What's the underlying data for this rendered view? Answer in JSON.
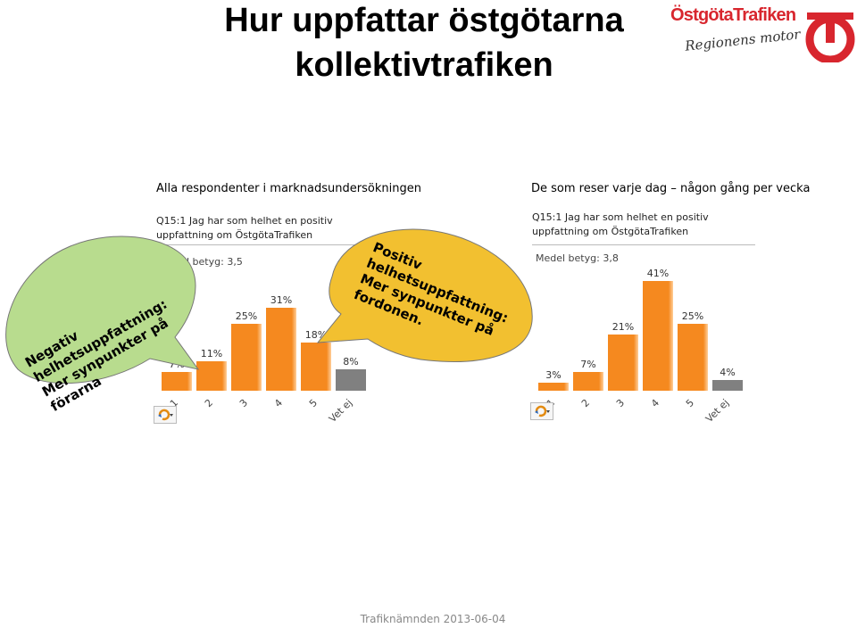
{
  "title_line1": "Hur uppfattar östgötarna",
  "title_line2": "kollektivtrafiken",
  "logo": {
    "name": "ÖstgötaTrafiken",
    "tagline": "Regionens motor",
    "color": "#d8262e"
  },
  "left_subtitle": "Alla respondenter i marknadsundersökningen",
  "right_subtitle": "De som reser varje dag – någon gång per vecka",
  "negative_bubble": "Negativ\nhelhetsuppfattning:\nMer synpunkter på\nförarna",
  "positive_bubble": "Positiv\nhelhetsuppfattning:\nMer synpunkter på\nfordonen.",
  "footer": "Trafiknämnden 2013-06-04",
  "colors": {
    "bar": "#f5891f",
    "bar_light": "#ffcf9a",
    "bar_gray": "#808080",
    "neg_bubble": "#b8dc8e",
    "pos_bubble": "#f2c030"
  },
  "chart_data": [
    {
      "type": "bar",
      "title_line1": "Q15:1 Jag har som helhet en positiv",
      "title_line2": "uppfattning om ÖstgötaTrafiken",
      "mean_label": "Medel betyg: 3,5",
      "categories": [
        "1",
        "2",
        "3",
        "4",
        "5",
        "Vet ej"
      ],
      "values": [
        7,
        11,
        25,
        31,
        18,
        8
      ],
      "labels": [
        "7%",
        "11%",
        "25%",
        "31%",
        "18%",
        "8%"
      ]
    },
    {
      "type": "bar",
      "title_line1": "Q15:1 Jag har som helhet en positiv",
      "title_line2": "uppfattning om ÖstgötaTrafiken",
      "mean_label": "Medel betyg: 3,8",
      "categories": [
        "1",
        "2",
        "3",
        "4",
        "5",
        "Vet ej"
      ],
      "values": [
        3,
        7,
        21,
        41,
        25,
        4
      ],
      "labels": [
        "3%",
        "7%",
        "21%",
        "41%",
        "25%",
        "4%"
      ]
    }
  ]
}
